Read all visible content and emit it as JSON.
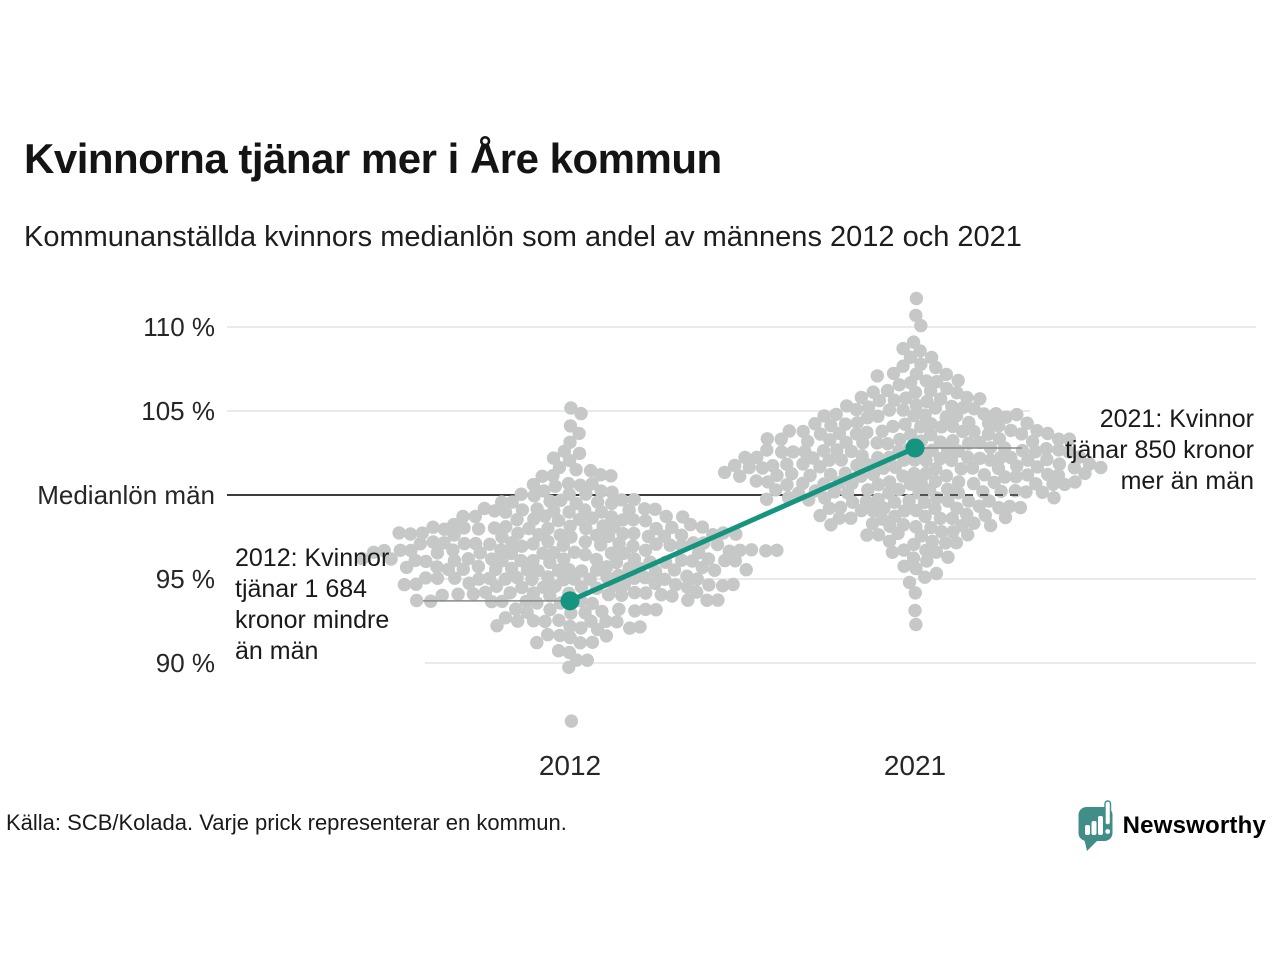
{
  "chart_data": {
    "type": "beeswarm",
    "title": "Kvinnorna tjänar mer i Åre kommun",
    "subtitle": "Kommunanställda kvinnors medianlön som andel av männens 2012 och 2021",
    "unit": "% av männens medianlön",
    "ylim": [
      86,
      112
    ],
    "grid": "horizontal",
    "yticks": [
      {
        "value": 110,
        "label": "110 %"
      },
      {
        "value": 105,
        "label": "105 %"
      },
      {
        "value": 100,
        "label": "Medianlön män"
      },
      {
        "value": 95,
        "label": "95 %"
      },
      {
        "value": 90,
        "label": "90 %"
      }
    ],
    "groups": [
      {
        "label": "2012",
        "bins": [
          [
            86.5,
            1
          ],
          [
            89.6,
            1
          ],
          [
            90.1,
            2
          ],
          [
            90.6,
            2
          ],
          [
            91.1,
            3
          ],
          [
            91.6,
            4
          ],
          [
            92.1,
            6
          ],
          [
            92.6,
            8
          ],
          [
            93.1,
            10
          ],
          [
            93.6,
            12
          ],
          [
            94.1,
            15
          ],
          [
            94.6,
            17
          ],
          [
            95.1,
            19
          ],
          [
            95.6,
            21
          ],
          [
            96.1,
            22
          ],
          [
            96.6,
            22
          ],
          [
            97.1,
            21
          ],
          [
            97.6,
            19
          ],
          [
            98.1,
            17
          ],
          [
            98.6,
            14
          ],
          [
            99.1,
            12
          ],
          [
            99.6,
            9
          ],
          [
            100.1,
            7
          ],
          [
            100.6,
            5
          ],
          [
            101.1,
            4
          ],
          [
            101.6,
            3
          ],
          [
            102.1,
            2
          ],
          [
            102.6,
            2
          ],
          [
            103.1,
            1
          ],
          [
            103.6,
            1
          ],
          [
            104.2,
            1
          ],
          [
            104.7,
            1
          ],
          [
            105.3,
            1
          ]
        ]
      },
      {
        "label": "2021",
        "bins": [
          [
            92.2,
            1
          ],
          [
            93.2,
            1
          ],
          [
            94.2,
            1
          ],
          [
            94.7,
            1
          ],
          [
            95.2,
            2
          ],
          [
            95.7,
            2
          ],
          [
            96.2,
            3
          ],
          [
            96.7,
            4
          ],
          [
            97.2,
            5
          ],
          [
            97.7,
            7
          ],
          [
            98.2,
            9
          ],
          [
            98.7,
            11
          ],
          [
            99.2,
            13
          ],
          [
            99.7,
            15
          ],
          [
            100.2,
            17
          ],
          [
            100.7,
            19
          ],
          [
            101.2,
            20
          ],
          [
            101.7,
            21
          ],
          [
            102.2,
            21
          ],
          [
            102.7,
            20
          ],
          [
            103.2,
            18
          ],
          [
            103.7,
            16
          ],
          [
            104.2,
            14
          ],
          [
            104.7,
            12
          ],
          [
            105.2,
            10
          ],
          [
            105.7,
            8
          ],
          [
            106.2,
            6
          ],
          [
            106.7,
            5
          ],
          [
            107.2,
            4
          ],
          [
            107.7,
            3
          ],
          [
            108.2,
            2
          ],
          [
            108.7,
            2
          ],
          [
            109.2,
            1
          ],
          [
            110.2,
            1
          ],
          [
            110.7,
            1
          ],
          [
            111.6,
            1
          ]
        ]
      }
    ],
    "highlight": {
      "name": "Åre kommun",
      "points": [
        {
          "group": "2012",
          "value_pct_of_men": 93.7
        },
        {
          "group": "2021",
          "value_pct_of_men": 102.8
        }
      ],
      "annotations": [
        {
          "text": "2012: Kvinnor\ntjänar 1 684\nkronor mindre\nän män"
        },
        {
          "text": "2021: Kvinnor\ntjänar 850 kronor\nmer än män"
        }
      ]
    },
    "note": "Varje prick representerar en kommun"
  },
  "footer": {
    "source": "Källa: SCB/Kolada. Varje prick representerar en kommun.",
    "brand": "Newsworthy"
  },
  "colors": {
    "accent": "#15947F",
    "brand": "#418E88",
    "dot": "#C6C8C7",
    "grid": "#E3E3E3",
    "baseline": "#3C3C3C",
    "leader": "#8A8A8A",
    "text": "#1A1A1A"
  }
}
